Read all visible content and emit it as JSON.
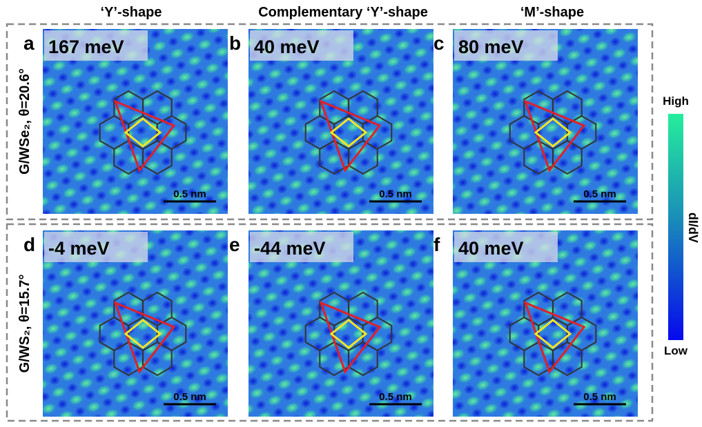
{
  "column_headers": [
    "‘Y’-shape",
    "Complementary ‘Y’-shape",
    "‘M’-shape"
  ],
  "rows": [
    {
      "label": "G/WSe₂, θ=20.6°",
      "panels": [
        {
          "letter": "a",
          "energy": "167 meV",
          "scale_bar": "0.5 nm"
        },
        {
          "letter": "b",
          "energy": "40 meV",
          "scale_bar": "0.5 nm"
        },
        {
          "letter": "c",
          "energy": "80 meV",
          "scale_bar": "0.5 nm"
        }
      ]
    },
    {
      "label": "G/WS₂, θ=15.7°",
      "panels": [
        {
          "letter": "d",
          "energy": "-4 meV",
          "scale_bar": "0.5 nm"
        },
        {
          "letter": "e",
          "energy": "-44 meV",
          "scale_bar": "0.5 nm"
        },
        {
          "letter": "f",
          "energy": "40 meV",
          "scale_bar": "0.5 nm"
        }
      ]
    }
  ],
  "colorbar": {
    "high": "High",
    "low": "Low",
    "label": "dI/dV"
  }
}
